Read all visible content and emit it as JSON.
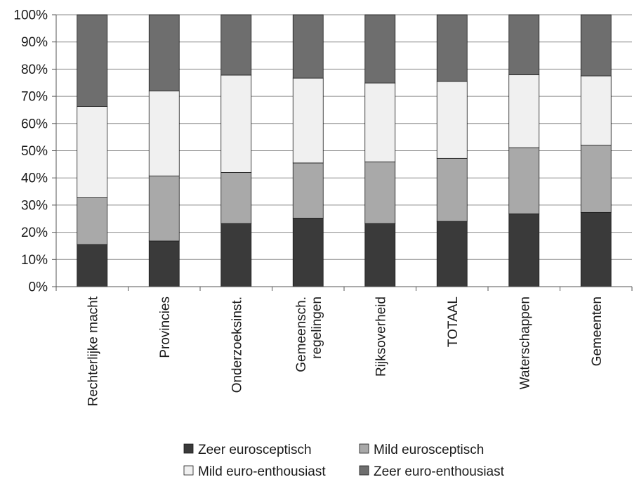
{
  "chart_data": {
    "type": "bar",
    "stacked": true,
    "normalized_percent": true,
    "categories": [
      [
        "Rechterlijke macht"
      ],
      [
        "Provincies"
      ],
      [
        "Onderzoeksinst."
      ],
      [
        "Gemeensch.",
        "regelingen"
      ],
      [
        "Rijksoverheid"
      ],
      [
        "TOTAAL"
      ],
      [
        "Waterschappen"
      ],
      [
        "Gemeenten"
      ]
    ],
    "series": [
      {
        "name": "Zeer eurosceptisch",
        "color": "#3a3a3a",
        "values": [
          15.5,
          16.8,
          23.2,
          25.2,
          23.2,
          24.0,
          26.8,
          27.3
        ]
      },
      {
        "name": "Mild eurosceptisch",
        "color": "#a9a9a9",
        "values": [
          17.2,
          23.9,
          18.8,
          20.3,
          22.7,
          23.2,
          24.3,
          24.7
        ]
      },
      {
        "name": "Mild euro-enthousiast",
        "color": "#f0f0f0",
        "values": [
          33.6,
          31.3,
          35.8,
          31.2,
          29.0,
          28.3,
          26.8,
          25.5
        ]
      },
      {
        "name": "Zeer euro-enthousiast",
        "color": "#6e6e6e",
        "values": [
          33.7,
          28.0,
          22.2,
          23.3,
          25.1,
          24.5,
          22.1,
          22.5
        ]
      }
    ],
    "y_ticks": [
      "0%",
      "10%",
      "20%",
      "30%",
      "40%",
      "50%",
      "60%",
      "70%",
      "80%",
      "90%",
      "100%"
    ],
    "ylim": [
      0,
      100
    ],
    "grid": true,
    "legend_position": "bottom",
    "title": "",
    "xlabel": "",
    "ylabel": ""
  }
}
